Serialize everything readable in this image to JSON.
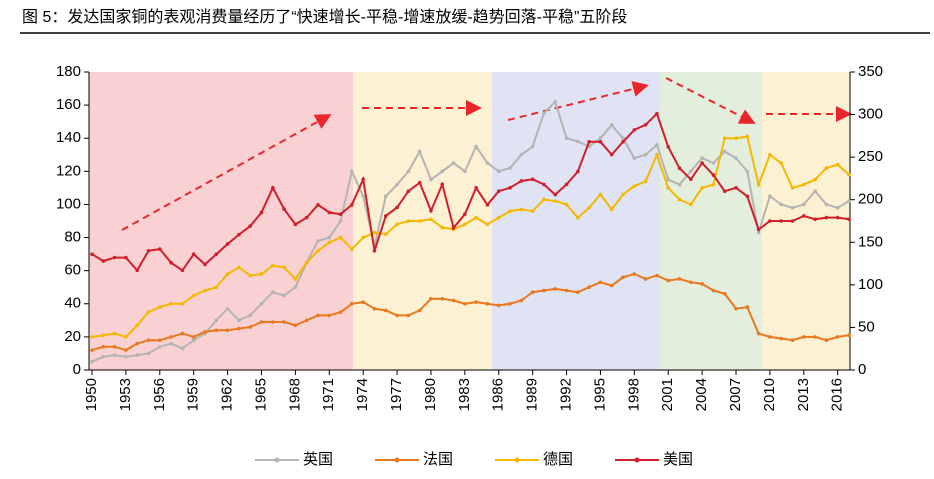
{
  "chart_data": {
    "type": "line",
    "title": "图 5：发达国家铜的表观消费量经历了“快速增长-平稳-增速放缓-趋势回落-平稳”五阶段",
    "x": [
      1950,
      1951,
      1952,
      1953,
      1954,
      1955,
      1956,
      1957,
      1958,
      1959,
      1960,
      1961,
      1962,
      1963,
      1964,
      1965,
      1966,
      1967,
      1968,
      1969,
      1970,
      1971,
      1972,
      1973,
      1974,
      1975,
      1976,
      1977,
      1978,
      1979,
      1980,
      1981,
      1982,
      1983,
      1984,
      1985,
      1986,
      1987,
      1988,
      1989,
      1990,
      1991,
      1992,
      1993,
      1994,
      1995,
      1996,
      1997,
      1998,
      1999,
      2000,
      2001,
      2002,
      2003,
      2004,
      2005,
      2006,
      2007,
      2008,
      2009,
      2010,
      2011,
      2012,
      2013,
      2014,
      2015,
      2016,
      2017
    ],
    "xlim": [
      1950,
      2017
    ],
    "xticks": [
      1950,
      1953,
      1956,
      1959,
      1962,
      1965,
      1968,
      1971,
      1974,
      1977,
      1980,
      1983,
      1986,
      1989,
      1992,
      1995,
      1998,
      2001,
      2004,
      2007,
      2010,
      2013,
      2016
    ],
    "ylim": [
      0,
      180
    ],
    "yticks": [
      0,
      20,
      40,
      60,
      80,
      100,
      120,
      140,
      160,
      180
    ],
    "y2lim": [
      0,
      350
    ],
    "y2ticks": [
      0,
      50,
      100,
      150,
      200,
      250,
      300,
      350
    ],
    "series": [
      {
        "name": "英国",
        "color": "#b4b4b4",
        "values": [
          5,
          8,
          9,
          8,
          9,
          10,
          14,
          16,
          13,
          18,
          22,
          30,
          37,
          30,
          33,
          40,
          47,
          45,
          50,
          65,
          78,
          80,
          90,
          120,
          105,
          75,
          105,
          112,
          120,
          132,
          115,
          120,
          125,
          120,
          135,
          125,
          120,
          122,
          130,
          135,
          155,
          162,
          140,
          138,
          135,
          140,
          148,
          140,
          128,
          130,
          136,
          115,
          112,
          120,
          128,
          125,
          132,
          128,
          120,
          83,
          105,
          100,
          98,
          100,
          108,
          100,
          98,
          102
        ]
      },
      {
        "name": "法国",
        "color": "#e8791e",
        "values": [
          12,
          14,
          14,
          12,
          16,
          18,
          18,
          20,
          22,
          20,
          23,
          24,
          24,
          25,
          26,
          29,
          29,
          29,
          27,
          30,
          33,
          33,
          35,
          40,
          41,
          37,
          36,
          33,
          33,
          36,
          43,
          43,
          42,
          40,
          41,
          40,
          39,
          40,
          42,
          47,
          48,
          49,
          48,
          47,
          50,
          53,
          51,
          56,
          58,
          55,
          57,
          54,
          55,
          53,
          52,
          48,
          46,
          37,
          38,
          22,
          20,
          19,
          18,
          20,
          20,
          18,
          20,
          21
        ]
      },
      {
        "name": "德国",
        "color": "#f5b800",
        "values": [
          20,
          21,
          22,
          20,
          27,
          35,
          38,
          40,
          40,
          45,
          48,
          50,
          58,
          62,
          57,
          58,
          63,
          62,
          55,
          65,
          72,
          77,
          80,
          73,
          80,
          83,
          82,
          88,
          90,
          90,
          91,
          86,
          85,
          88,
          92,
          88,
          92,
          96,
          97,
          96,
          103,
          102,
          100,
          92,
          98,
          106,
          97,
          106,
          111,
          114,
          130,
          110,
          103,
          100,
          110,
          112,
          140,
          140,
          141,
          112,
          130,
          125,
          110,
          112,
          115,
          122,
          124,
          118
        ]
      },
      {
        "name": "美国",
        "color": "#d01f2a",
        "axis": "y2",
        "values": [
          136,
          128,
          132,
          132,
          117,
          140,
          142,
          126,
          117,
          136,
          124,
          136,
          148,
          159,
          169,
          185,
          214,
          189,
          171,
          179,
          194,
          185,
          183,
          194,
          224,
          140,
          181,
          191,
          210,
          220,
          187,
          218,
          167,
          183,
          214,
          194,
          210,
          214,
          222,
          224,
          218,
          206,
          218,
          233,
          268,
          268,
          253,
          268,
          282,
          288,
          301,
          262,
          237,
          224,
          243,
          229,
          210,
          214,
          204,
          165,
          175,
          175,
          175,
          181,
          177,
          179,
          179,
          177
        ]
      }
    ],
    "legend": "bottom"
  }
}
